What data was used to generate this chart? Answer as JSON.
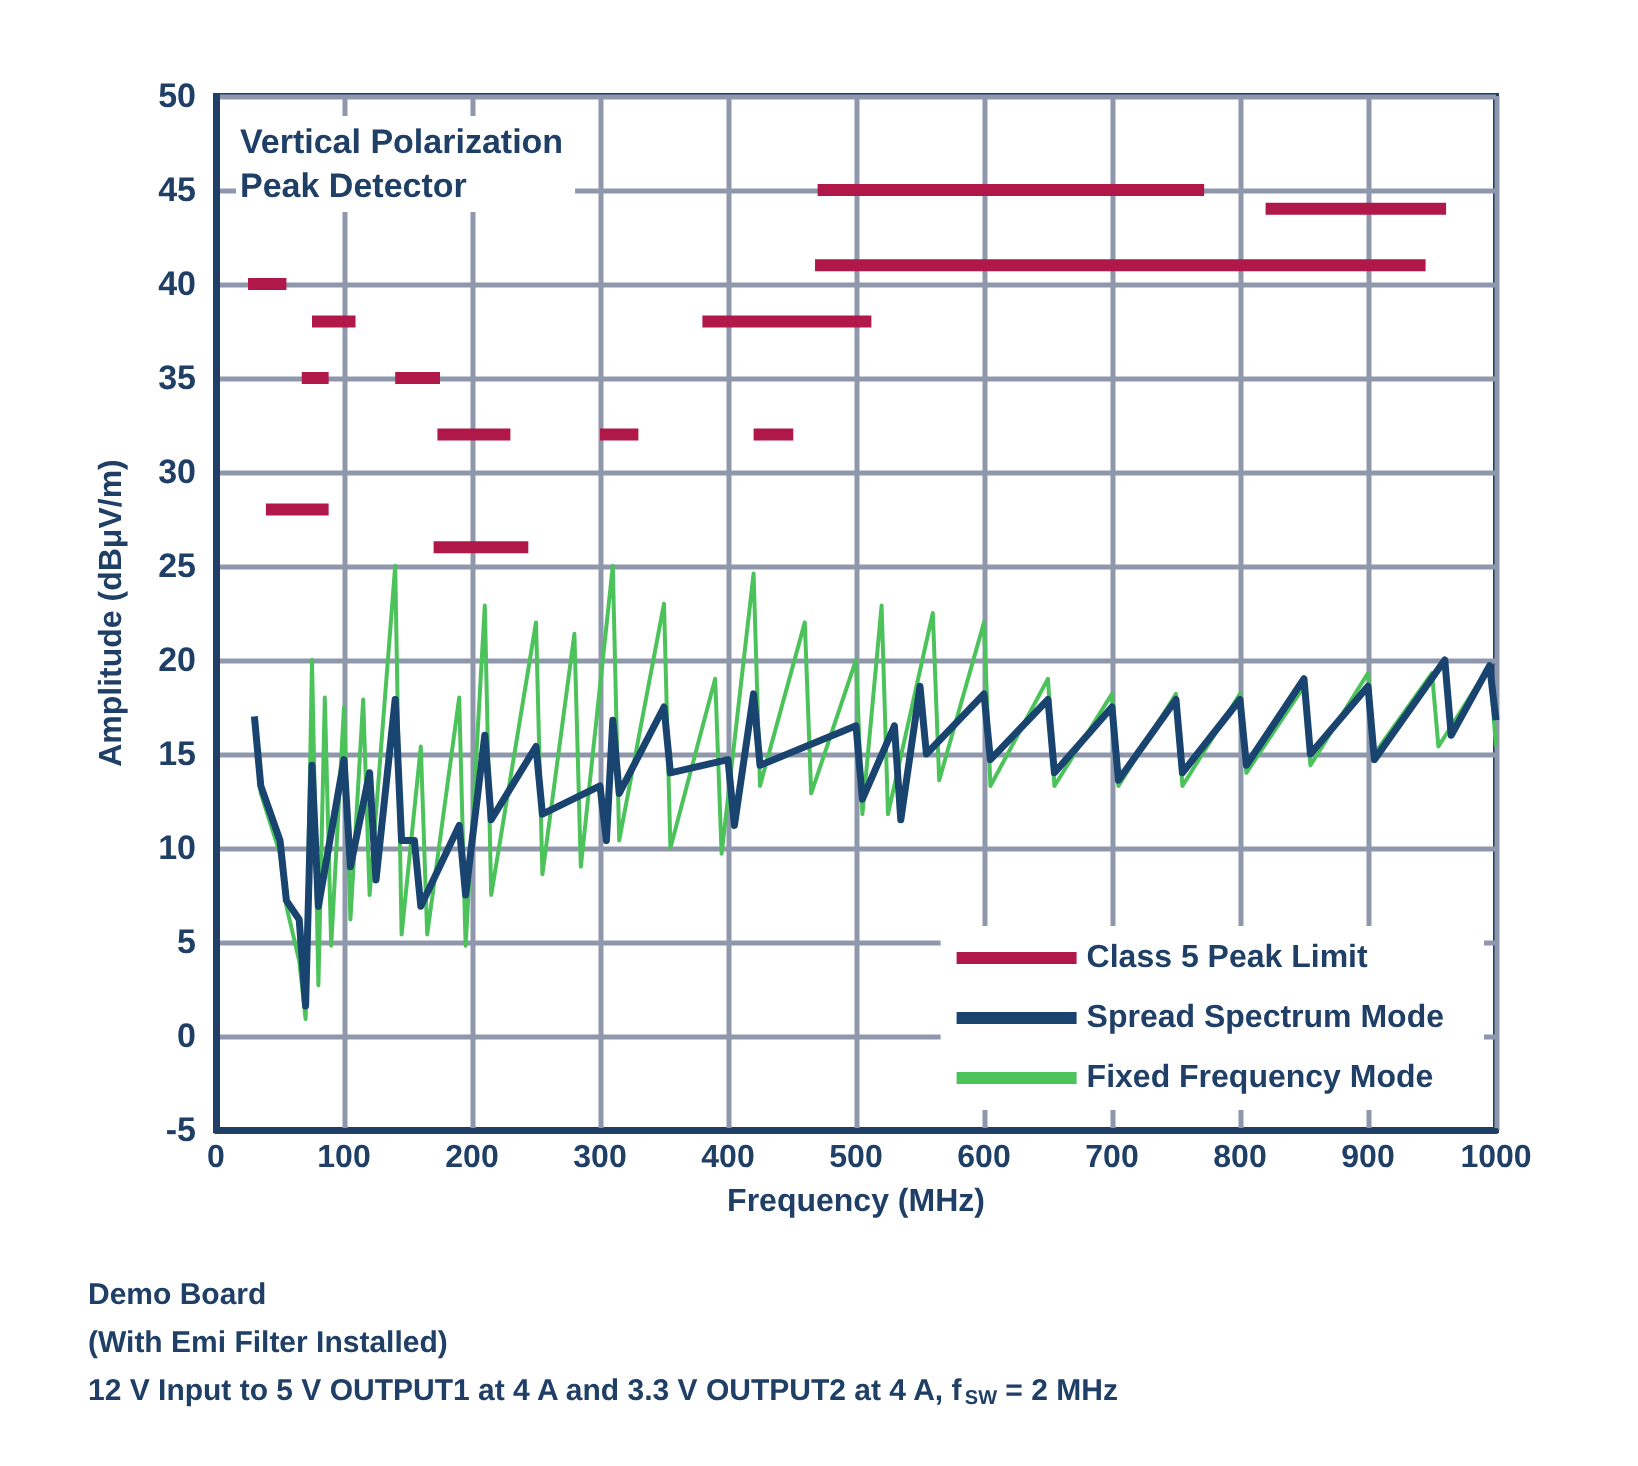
{
  "chart_data": {
    "type": "line",
    "xlabel": "Frequency (MHz)",
    "ylabel": "Amplitude (dBμV/m)",
    "annotations": [
      "Vertical Polarization\nPeak Detector",
      "Demo Board",
      "(With Emi Filter Installed)",
      "12 V Input to 5 V OUTPUT1 at 4 A and 3.3 V OUTPUT2 at 4 A, f$_{SW}$ = 2 MHz"
    ],
    "xlim": [
      0,
      1000
    ],
    "xticks": [
      0,
      100,
      200,
      300,
      400,
      500,
      600,
      700,
      800,
      900,
      1000
    ],
    "ylim": [
      -5,
      50
    ],
    "yticks": [
      -5,
      0,
      5,
      10,
      15,
      20,
      25,
      30,
      35,
      40,
      45,
      50
    ],
    "grid": true,
    "legend": "bottom right",
    "marker": "none",
    "series": [
      {
        "name": "Class 5 Peak Limit",
        "color": "#b0184a",
        "x": [
          25,
          55,
          null,
          39,
          88,
          null,
          67,
          88,
          null,
          75,
          109,
          null,
          140,
          175,
          null,
          173,
          230,
          null,
          170,
          244,
          null,
          300,
          330,
          null,
          380,
          512,
          null,
          420,
          451,
          null,
          468,
          945,
          null,
          470,
          772,
          null,
          820,
          961
        ],
        "values": [
          40,
          40,
          null,
          28,
          28,
          null,
          35,
          35,
          null,
          38,
          38,
          null,
          35,
          35,
          null,
          32,
          32,
          null,
          26,
          26,
          null,
          32,
          32,
          null,
          38,
          38,
          null,
          32,
          32,
          null,
          41,
          41,
          null,
          45,
          45,
          null,
          44,
          44
        ]
      },
      {
        "name": "Spread Spectrum Mode",
        "color": "#1a4470",
        "x": [
          30,
          35,
          50,
          55,
          65,
          70,
          75,
          80,
          100,
          105,
          120,
          125,
          140,
          145,
          155,
          160,
          190,
          195,
          210,
          215,
          250,
          255,
          300,
          305,
          310,
          315,
          350,
          355,
          400,
          405,
          420,
          425,
          500,
          505,
          530,
          535,
          550,
          555,
          600,
          605,
          650,
          655,
          700,
          705,
          750,
          755,
          800,
          805,
          850,
          855,
          900,
          905,
          960,
          965,
          995,
          1000
        ],
        "values": [
          17,
          13.3,
          10.4,
          7.2,
          6.2,
          1.6,
          14.4,
          6.9,
          14.7,
          9,
          14,
          8.3,
          17.9,
          10.4,
          10.4,
          6.9,
          11.2,
          7.5,
          16,
          11.5,
          15.4,
          11.8,
          13.3,
          10.4,
          16.8,
          12.9,
          17.5,
          14,
          14.7,
          11.2,
          18.2,
          14.4,
          16.5,
          12.6,
          16.5,
          11.5,
          18.6,
          15,
          18.2,
          14.7,
          17.9,
          14,
          17.5,
          13.6,
          17.9,
          14,
          17.9,
          14.4,
          19,
          15,
          18.6,
          14.7,
          20,
          16,
          19.7,
          16.8
        ]
      },
      {
        "name": "Fixed Frequency Mode",
        "color": "#4cc35a",
        "x": [
          30,
          35,
          50,
          55,
          65,
          70,
          75,
          80,
          85,
          90,
          100,
          105,
          115,
          120,
          140,
          145,
          160,
          165,
          190,
          195,
          210,
          215,
          250,
          255,
          280,
          285,
          310,
          315,
          350,
          355,
          390,
          395,
          420,
          425,
          460,
          465,
          500,
          505,
          520,
          525,
          560,
          565,
          600,
          605,
          650,
          655,
          700,
          705,
          750,
          755,
          800,
          805,
          850,
          855,
          900,
          905,
          950,
          955,
          995,
          1000
        ],
        "values": [
          16.8,
          12.9,
          9.7,
          6.9,
          4,
          0.9,
          20,
          2.7,
          18,
          4.8,
          17.5,
          6.2,
          17.9,
          7.5,
          25,
          5.4,
          15.4,
          5.4,
          18,
          4.8,
          22.9,
          7.5,
          22,
          8.6,
          21.4,
          9,
          25,
          10.4,
          23,
          10,
          19,
          9.7,
          24.6,
          13.3,
          22,
          12.9,
          20,
          11.8,
          22.9,
          11.8,
          22.5,
          13.6,
          22,
          13.3,
          19,
          13.3,
          18.2,
          13.3,
          18.2,
          13.3,
          18.2,
          14,
          18.6,
          14.4,
          19.3,
          15,
          19.3,
          15.4,
          19.7,
          15.4
        ]
      }
    ]
  }
}
